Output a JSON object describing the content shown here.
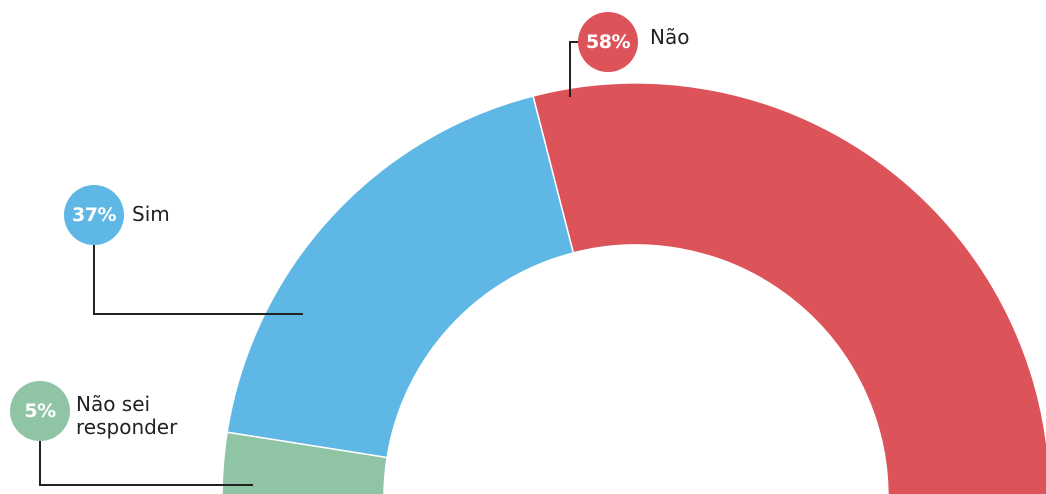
{
  "chart_data": {
    "type": "pie",
    "categories": [
      "Não",
      "Sim",
      "Não sei responder"
    ],
    "values": [
      58,
      37,
      5
    ],
    "value_labels": [
      "58%",
      "37%",
      "5%"
    ],
    "colors": [
      "#dc5359",
      "#5fb7e5",
      "#8fc4a5"
    ]
  }
}
